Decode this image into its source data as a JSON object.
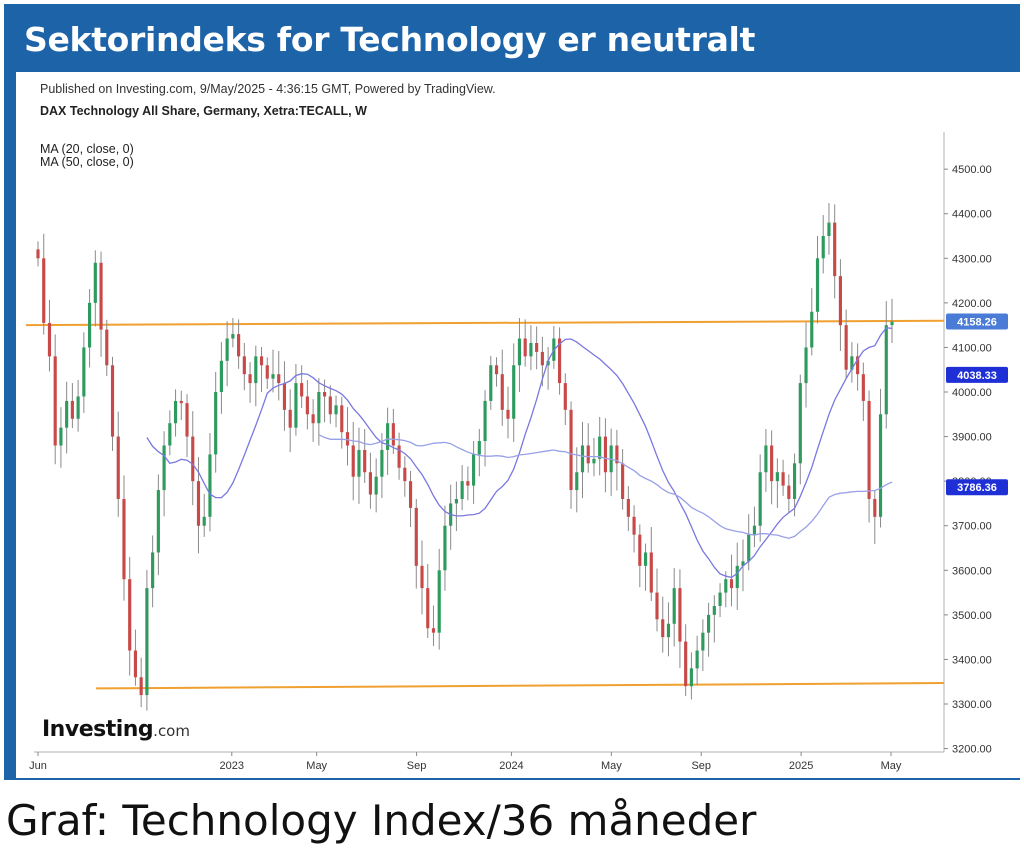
{
  "header": {
    "title": "Sektorindeks for Technology er neutralt"
  },
  "caption": "Graf: Technology Index/36 måneder",
  "chart_data": {
    "type": "candlestick",
    "published": "Published on Investing.com, 9/May/2025 - 4:36:15 GMT, Powered by TradingView.",
    "symbol": "DAX Technology All Share, Germany, Xetra:TECALL, W",
    "indicators": [
      "MA (20, close, 0)",
      "MA (50, close, 0)"
    ],
    "ylim": [
      3200,
      4550
    ],
    "y_ticks": [
      "4500.00",
      "4400.00",
      "4300.00",
      "4200.00",
      "4100.00",
      "4000.00",
      "3900.00",
      "3800.00",
      "3700.00",
      "3600.00",
      "3500.00",
      "3400.00",
      "3300.00",
      "3200.00"
    ],
    "x_ticks": [
      "Jun",
      "2023",
      "May",
      "Sep",
      "2024",
      "May",
      "Sep",
      "2025",
      "May"
    ],
    "price_labels": [
      {
        "value": "4158.26",
        "color": "#4a7bd6"
      },
      {
        "value": "4038.33",
        "color": "#1e2fd6"
      },
      {
        "value": "3786.36",
        "color": "#1e2fd6"
      }
    ],
    "resistance": [
      4150,
      4160
    ],
    "support": [
      3335,
      3347
    ],
    "closes": [
      4300,
      4155,
      4080,
      3880,
      3920,
      3980,
      3940,
      3990,
      4100,
      4200,
      4290,
      4140,
      4060,
      3900,
      3760,
      3580,
      3420,
      3360,
      3320,
      3560,
      3640,
      3780,
      3880,
      3930,
      3980,
      3975,
      3900,
      3800,
      3700,
      3720,
      3860,
      4000,
      4070,
      4120,
      4130,
      4080,
      4040,
      4020,
      4080,
      4060,
      4030,
      4040,
      4020,
      3960,
      3920,
      4020,
      3990,
      3950,
      3930,
      4000,
      3990,
      3950,
      3970,
      3910,
      3880,
      3810,
      3870,
      3820,
      3770,
      3810,
      3870,
      3930,
      3880,
      3830,
      3800,
      3740,
      3610,
      3560,
      3470,
      3460,
      3600,
      3700,
      3750,
      3760,
      3800,
      3790,
      3860,
      3890,
      3980,
      4060,
      4040,
      3960,
      3940,
      4060,
      4120,
      4080,
      4110,
      4090,
      4060,
      4070,
      4120,
      4020,
      3960,
      3780,
      3820,
      3880,
      3840,
      3850,
      3900,
      3820,
      3880,
      3840,
      3760,
      3720,
      3680,
      3610,
      3640,
      3550,
      3490,
      3450,
      3480,
      3560,
      3440,
      3340,
      3380,
      3420,
      3460,
      3500,
      3520,
      3550,
      3580,
      3560,
      3610,
      3620,
      3680,
      3700,
      3820,
      3880,
      3800,
      3820,
      3790,
      3760,
      3840,
      4020,
      4100,
      4180,
      4300,
      4350,
      4380,
      4260,
      4150,
      4050,
      4080,
      4040,
      3980,
      3760,
      3720,
      3950,
      4150,
      4158
    ],
    "ma20": [
      null,
      null,
      null,
      null,
      null,
      null,
      null,
      null,
      null,
      null,
      null,
      null,
      null,
      null,
      null,
      null,
      null,
      null,
      null,
      3898,
      3878,
      3866,
      3857,
      3840,
      3843,
      3849,
      3847,
      3838,
      3820,
      3795,
      3771,
      3763,
      3763,
      3775,
      3796,
      3826,
      3858,
      3892,
      3925,
      3960,
      3997,
      4009,
      4015,
      4019,
      4025,
      4037,
      4041,
      4040,
      4032,
      4021,
      4014,
      4008,
      4003,
      3995,
      3982,
      3963,
      3949,
      3933,
      3915,
      3898,
      3886,
      3882,
      3875,
      3870,
      3862,
      3850,
      3832,
      3815,
      3793,
      3767,
      3746,
      3732,
      3725,
      3722,
      3722,
      3724,
      3725,
      3728,
      3739,
      3758,
      3777,
      3788,
      3802,
      3827,
      3863,
      3905,
      3942,
      3983,
      4029,
      4070,
      4094,
      4108,
      4118,
      4119,
      4112,
      4102,
      4093,
      4083,
      4074,
      4062,
      4050,
      4037,
      4019,
      3997,
      3975,
      3949,
      3923,
      3890,
      3856,
      3824,
      3797,
      3777,
      3751,
      3727,
      3698,
      3668,
      3643,
      3626,
      3607,
      3592,
      3587,
      3584,
      3593,
      3610,
      3620,
      3633,
      3653,
      3669,
      3686,
      3704,
      3719,
      3729,
      3739,
      3766,
      3797,
      3831,
      3872,
      3911,
      3950,
      3982,
      4006,
      4030,
      4052,
      4073,
      4092,
      4100,
      4104,
      4127,
      4144,
      4143
    ],
    "ma50": [
      null,
      null,
      null,
      null,
      null,
      null,
      null,
      null,
      null,
      null,
      null,
      null,
      null,
      null,
      null,
      null,
      null,
      null,
      null,
      null,
      null,
      null,
      null,
      null,
      null,
      null,
      null,
      null,
      null,
      null,
      null,
      null,
      null,
      null,
      null,
      null,
      null,
      null,
      null,
      null,
      null,
      null,
      null,
      null,
      null,
      null,
      null,
      null,
      null,
      3904,
      3898,
      3894,
      3894,
      3894,
      3893,
      3890,
      3889,
      3884,
      3882,
      3885,
      3889,
      3895,
      3894,
      3893,
      3891,
      3887,
      3880,
      3879,
      3882,
      3885,
      3886,
      3887,
      3884,
      3877,
      3871,
      3865,
      3861,
      3858,
      3856,
      3856,
      3857,
      3856,
      3853,
      3855,
      3859,
      3860,
      3862,
      3864,
      3866,
      3868,
      3870,
      3867,
      3866,
      3861,
      3859,
      3856,
      3855,
      3855,
      3855,
      3851,
      3849,
      3846,
      3839,
      3831,
      3824,
      3813,
      3806,
      3800,
      3792,
      3782,
      3774,
      3771,
      3764,
      3753,
      3741,
      3734,
      3728,
      3720,
      3710,
      3700,
      3693,
      3690,
      3687,
      3685,
      3681,
      3679,
      3682,
      3682,
      3680,
      3679,
      3675,
      3672,
      3676,
      3687,
      3697,
      3710,
      3726,
      3745,
      3764,
      3770,
      3773,
      3774,
      3776,
      3777,
      3777,
      3778,
      3779,
      3784,
      3792,
      3798
    ]
  }
}
